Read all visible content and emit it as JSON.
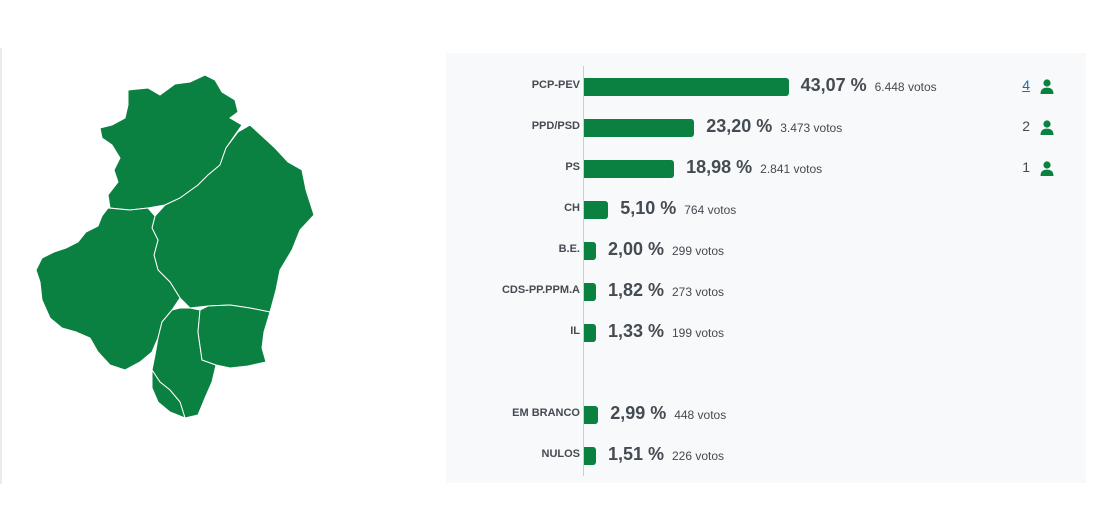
{
  "colors": {
    "accent": "#0a8041",
    "text": "#454b52",
    "link": "#1a6db5"
  },
  "map": {
    "region_color": "#0a8041",
    "border_color": "#ffffff",
    "icon": "district-map"
  },
  "chart_data": {
    "type": "bar",
    "orientation": "horizontal",
    "categories": [
      "PCP-PEV",
      "PPD/PSD",
      "PS",
      "CH",
      "B.E.",
      "CDS-PP.PPM.A",
      "IL",
      "EM BRANCO",
      "NULOS"
    ],
    "values": [
      43.07,
      23.2,
      18.98,
      5.1,
      2.0,
      1.82,
      1.33,
      2.99,
      1.51
    ],
    "xlim": [
      0,
      50
    ],
    "grid": false,
    "rows": [
      {
        "label": "PCP-PEV",
        "value": 43.07,
        "pct": "43,07 %",
        "votes": "6.448 votos",
        "seats": "4",
        "seats_link": true,
        "group": "party"
      },
      {
        "label": "PPD/PSD",
        "value": 23.2,
        "pct": "23,20 %",
        "votes": "3.473 votos",
        "seats": "2",
        "seats_link": false,
        "group": "party"
      },
      {
        "label": "PS",
        "value": 18.98,
        "pct": "18,98 %",
        "votes": "2.841 votos",
        "seats": "1",
        "seats_link": false,
        "group": "party"
      },
      {
        "label": "CH",
        "value": 5.1,
        "pct": "5,10 %",
        "votes": "764 votos",
        "group": "party"
      },
      {
        "label": "B.E.",
        "value": 2.0,
        "pct": "2,00 %",
        "votes": "299 votos",
        "group": "party"
      },
      {
        "label": "CDS-PP.PPM.A",
        "value": 1.82,
        "pct": "1,82 %",
        "votes": "273 votos",
        "group": "party"
      },
      {
        "label": "IL",
        "value": 1.33,
        "pct": "1,33 %",
        "votes": "199 votos",
        "group": "party"
      },
      {
        "label": "EM BRANCO",
        "value": 2.99,
        "pct": "2,99 %",
        "votes": "448 votos",
        "group": "other"
      },
      {
        "label": "NULOS",
        "value": 1.51,
        "pct": "1,51 %",
        "votes": "226 votos",
        "group": "other"
      }
    ]
  },
  "icons": {
    "seat": "person-icon"
  }
}
